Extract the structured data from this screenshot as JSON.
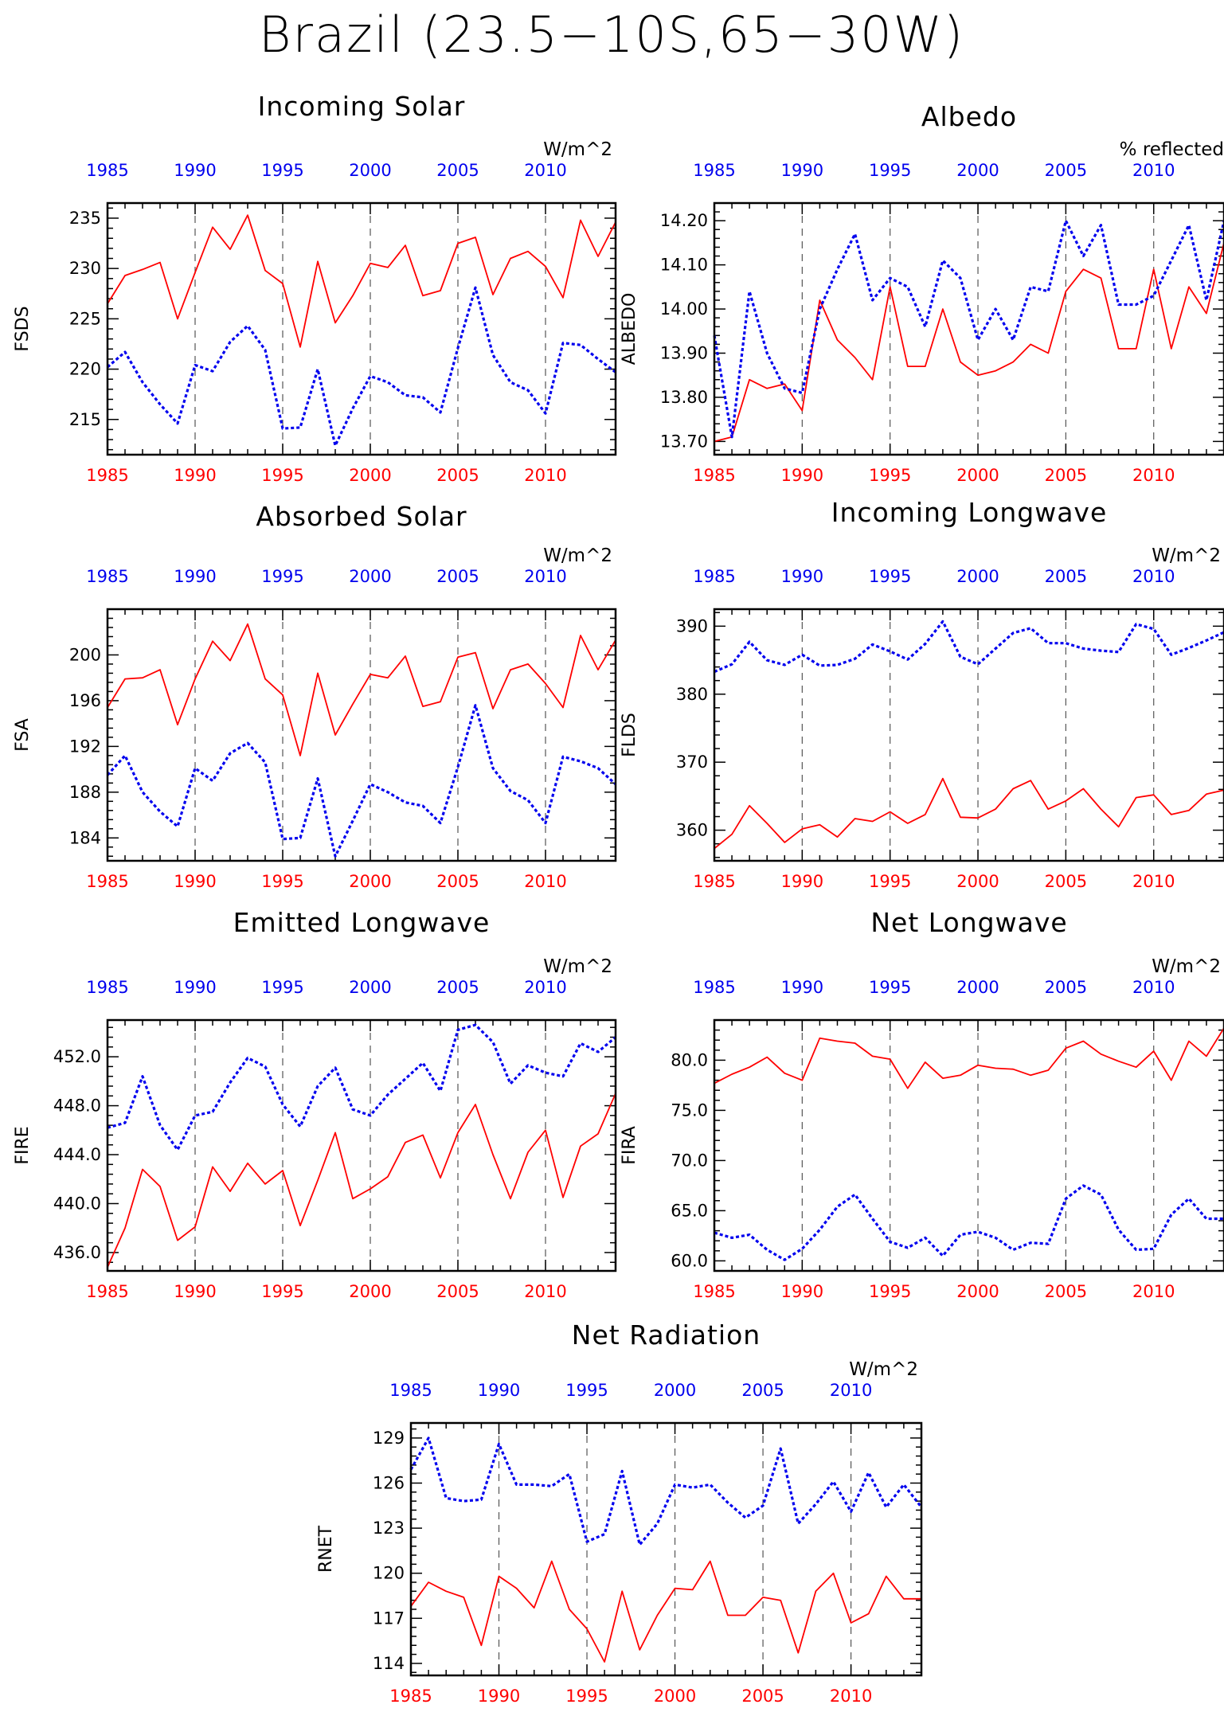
{
  "figure_title": "Brazil (23.5−10S,65−30W)",
  "colors": {
    "red": "#ff0000",
    "blue": "#0000ee",
    "axis": "#000000"
  },
  "chart_data": [
    {
      "type": "line",
      "title": "Incoming Solar",
      "ylabel": "FSDS",
      "units": "W/m^2",
      "x_start": 1985,
      "ylim": [
        211.5,
        236.5
      ],
      "yticks": [
        215,
        220,
        225,
        230,
        235
      ],
      "ytick_labels": [
        "215",
        "220",
        "225",
        "230",
        "235"
      ],
      "xticks": [
        1985,
        1990,
        1995,
        2000,
        2005,
        2010
      ],
      "xtick_labels": [
        "1985",
        "1990",
        "1995",
        "2000",
        "2005",
        "2010"
      ],
      "grid": "dashed vertical lines at 1990, 1995, 2000, 2005, 2010",
      "series": [
        {
          "values": [
            226.5,
            229.3,
            229.9,
            230.6,
            225.0,
            229.6,
            234.1,
            231.9,
            235.3,
            229.8,
            228.5,
            222.2,
            230.7,
            224.6,
            227.3,
            230.5,
            230.1,
            232.3,
            227.3,
            227.8,
            232.5,
            233.1,
            227.4,
            231.0,
            231.7,
            230.2,
            227.1,
            234.8,
            231.2,
            234.6
          ]
        },
        {
          "values": [
            220.2,
            221.7,
            218.7,
            216.5,
            214.6,
            220.4,
            219.8,
            222.7,
            224.3,
            221.9,
            214.1,
            214.2,
            220.0,
            212.4,
            216.1,
            219.3,
            218.7,
            217.4,
            217.2,
            215.7,
            222.1,
            228.1,
            221.4,
            218.7,
            217.9,
            215.6,
            222.6,
            222.4,
            221.0,
            219.7
          ]
        }
      ]
    },
    {
      "type": "line",
      "title": "Albedo",
      "ylabel": "ALBEDO",
      "units": "% reflected",
      "x_start": 1985,
      "ylim": [
        13.67,
        14.24
      ],
      "yticks": [
        13.7,
        13.8,
        13.9,
        14.0,
        14.1,
        14.2
      ],
      "ytick_labels": [
        "13.70",
        "13.80",
        "13.90",
        "14.00",
        "14.10",
        "14.20"
      ],
      "xticks": [
        1985,
        1990,
        1995,
        2000,
        2005,
        2010
      ],
      "xtick_labels": [
        "1985",
        "1990",
        "1995",
        "2000",
        "2005",
        "2010"
      ],
      "grid": "dashed vertical lines at 1990, 1995, 2000, 2005, 2010",
      "series": [
        {
          "values": [
            13.7,
            13.71,
            13.84,
            13.82,
            13.83,
            13.77,
            14.02,
            13.93,
            13.89,
            13.84,
            14.05,
            13.87,
            13.87,
            14.0,
            13.88,
            13.85,
            13.86,
            13.88,
            13.92,
            13.9,
            14.04,
            14.09,
            14.07,
            13.91,
            13.91,
            14.09,
            13.91,
            14.05,
            13.99,
            14.15
          ]
        },
        {
          "values": [
            13.94,
            13.71,
            14.04,
            13.9,
            13.82,
            13.81,
            14.0,
            14.09,
            14.17,
            14.02,
            14.07,
            14.05,
            13.96,
            14.11,
            14.07,
            13.93,
            14.0,
            13.93,
            14.05,
            14.04,
            14.2,
            14.12,
            14.19,
            14.01,
            14.01,
            14.03,
            14.11,
            14.19,
            14.02,
            14.2
          ]
        }
      ]
    },
    {
      "type": "line",
      "title": "Absorbed Solar",
      "ylabel": "FSA",
      "units": "W/m^2",
      "x_start": 1985,
      "ylim": [
        182.0,
        204.0
      ],
      "yticks": [
        184,
        188,
        192,
        196,
        200
      ],
      "ytick_labels": [
        "184",
        "188",
        "192",
        "196",
        "200"
      ],
      "xticks": [
        1985,
        1990,
        1995,
        2000,
        2005,
        2010
      ],
      "xtick_labels": [
        "1985",
        "1990",
        "1995",
        "2000",
        "2005",
        "2010"
      ],
      "grid": "dashed vertical lines at 1990, 1995, 2000, 2005, 2010",
      "series": [
        {
          "values": [
            195.4,
            197.9,
            198.0,
            198.7,
            193.9,
            197.9,
            201.2,
            199.5,
            202.7,
            197.9,
            196.5,
            191.2,
            198.4,
            193.0,
            195.7,
            198.3,
            198.0,
            199.9,
            195.5,
            195.9,
            199.8,
            200.2,
            195.3,
            198.7,
            199.2,
            197.5,
            195.4,
            201.7,
            198.7,
            201.3
          ]
        },
        {
          "values": [
            189.5,
            191.2,
            188.0,
            186.3,
            185.0,
            190.1,
            189.0,
            191.4,
            192.3,
            190.6,
            183.9,
            184.0,
            189.2,
            182.4,
            185.5,
            188.7,
            188.0,
            187.1,
            186.8,
            185.3,
            190.2,
            195.6,
            190.1,
            188.1,
            187.3,
            185.3,
            191.1,
            190.7,
            190.1,
            188.7
          ]
        }
      ]
    },
    {
      "type": "line",
      "title": "Incoming Longwave",
      "ylabel": "FLDS",
      "units": "W/m^2",
      "x_start": 1985,
      "ylim": [
        355.5,
        392.5
      ],
      "yticks": [
        360,
        370,
        380,
        390
      ],
      "ytick_labels": [
        "360",
        "370",
        "380",
        "390"
      ],
      "xticks": [
        1985,
        1990,
        1995,
        2000,
        2005,
        2010
      ],
      "xtick_labels": [
        "1985",
        "1990",
        "1995",
        "2000",
        "2005",
        "2010"
      ],
      "grid": "dashed vertical lines at 1990, 1995, 2000, 2005, 2010",
      "series": [
        {
          "values": [
            357.3,
            359.4,
            363.6,
            361.0,
            358.2,
            360.2,
            360.8,
            359.0,
            361.7,
            361.3,
            362.7,
            361.0,
            362.3,
            367.6,
            361.9,
            361.8,
            363.1,
            366.1,
            367.3,
            363.1,
            364.3,
            366.1,
            363.1,
            360.5,
            364.8,
            365.2,
            362.3,
            362.9,
            365.3,
            365.9
          ]
        },
        {
          "values": [
            383.3,
            384.4,
            387.7,
            385.0,
            384.3,
            385.8,
            384.2,
            384.3,
            385.2,
            387.3,
            386.3,
            385.1,
            387.4,
            390.7,
            385.5,
            384.4,
            386.7,
            389.0,
            389.7,
            387.5,
            387.5,
            386.7,
            386.4,
            386.2,
            390.3,
            389.6,
            385.8,
            386.8,
            387.9,
            389.1
          ]
        }
      ]
    },
    {
      "type": "line",
      "title": "Emitted Longwave",
      "ylabel": "FIRE",
      "units": "W/m^2",
      "x_start": 1985,
      "ylim": [
        434.5,
        455.0
      ],
      "yticks": [
        436,
        440,
        444,
        448,
        452
      ],
      "ytick_labels": [
        "436.0",
        "440.0",
        "444.0",
        "448.0",
        "452.0"
      ],
      "xticks": [
        1985,
        1990,
        1995,
        2000,
        2005,
        2010
      ],
      "xtick_labels": [
        "1985",
        "1990",
        "1995",
        "2000",
        "2005",
        "2010"
      ],
      "grid": "dashed vertical lines at 1990, 1995, 2000, 2005, 2010",
      "series": [
        {
          "values": [
            434.8,
            438.0,
            442.8,
            441.4,
            437.0,
            438.1,
            443.0,
            441.0,
            443.3,
            441.6,
            442.7,
            438.2,
            441.9,
            445.8,
            440.4,
            441.2,
            442.2,
            445.0,
            445.6,
            442.1,
            445.8,
            448.1,
            444.0,
            440.4,
            444.2,
            446.0,
            440.5,
            444.7,
            445.7,
            449.0
          ]
        },
        {
          "values": [
            446.2,
            446.6,
            450.4,
            446.4,
            444.4,
            447.2,
            447.5,
            449.9,
            451.9,
            451.2,
            448.1,
            446.3,
            449.6,
            451.1,
            447.7,
            447.2,
            448.9,
            450.2,
            451.5,
            449.2,
            454.2,
            454.6,
            453.2,
            449.8,
            451.3,
            450.7,
            450.4,
            453.1,
            452.4,
            453.6
          ]
        }
      ]
    },
    {
      "type": "line",
      "title": "Net Longwave",
      "ylabel": "FIRA",
      "units": "W/m^2",
      "x_start": 1985,
      "ylim": [
        59.0,
        84.0
      ],
      "yticks": [
        60,
        65,
        70,
        75,
        80
      ],
      "ytick_labels": [
        "60.0",
        "65.0",
        "70.0",
        "75.0",
        "80.0"
      ],
      "xticks": [
        1985,
        1990,
        1995,
        2000,
        2005,
        2010
      ],
      "xtick_labels": [
        "1985",
        "1990",
        "1995",
        "2000",
        "2005",
        "2010"
      ],
      "grid": "dashed vertical lines at 1990, 1995, 2000, 2005, 2010",
      "series": [
        {
          "values": [
            77.7,
            78.6,
            79.3,
            80.3,
            78.7,
            78.0,
            82.2,
            81.9,
            81.7,
            80.4,
            80.1,
            77.2,
            79.8,
            78.2,
            78.5,
            79.5,
            79.2,
            79.1,
            78.5,
            79.0,
            81.2,
            81.9,
            80.6,
            79.9,
            79.3,
            80.9,
            78.0,
            81.9,
            80.4,
            83.2
          ]
        },
        {
          "values": [
            62.8,
            62.3,
            62.6,
            61.1,
            60.1,
            61.2,
            63.1,
            65.4,
            66.6,
            64.2,
            61.9,
            61.3,
            62.3,
            60.5,
            62.6,
            62.9,
            62.3,
            61.1,
            61.8,
            61.7,
            66.2,
            67.5,
            66.6,
            63.1,
            61.1,
            61.2,
            64.6,
            66.2,
            64.2,
            64.2
          ]
        }
      ]
    },
    {
      "type": "line",
      "title": "Net Radiation",
      "ylabel": "RNET",
      "units": "W/m^2",
      "x_start": 1985,
      "ylim": [
        113.2,
        130.0
      ],
      "yticks": [
        114,
        117,
        120,
        123,
        126,
        129
      ],
      "ytick_labels": [
        "114",
        "117",
        "120",
        "123",
        "126",
        "129"
      ],
      "xticks": [
        1985,
        1990,
        1995,
        2000,
        2005,
        2010
      ],
      "xtick_labels": [
        "1985",
        "1990",
        "1995",
        "2000",
        "2005",
        "2010"
      ],
      "grid": "dashed vertical lines at 1990, 1995, 2000, 2005, 2010",
      "series": [
        {
          "values": [
            117.8,
            119.4,
            118.8,
            118.4,
            115.2,
            119.8,
            119.0,
            117.7,
            120.8,
            117.6,
            116.3,
            114.1,
            118.8,
            114.9,
            117.2,
            119.0,
            118.9,
            120.8,
            117.2,
            117.2,
            118.4,
            118.2,
            114.7,
            118.8,
            120.0,
            116.7,
            117.3,
            119.8,
            118.3,
            118.3
          ]
        },
        {
          "values": [
            126.9,
            129.0,
            125.0,
            124.8,
            124.9,
            128.6,
            125.9,
            125.9,
            125.8,
            126.6,
            122.1,
            122.6,
            126.8,
            121.9,
            123.3,
            125.9,
            125.7,
            125.9,
            124.7,
            123.7,
            124.5,
            128.3,
            123.3,
            124.6,
            126.1,
            124.1,
            126.7,
            124.4,
            125.9,
            124.4
          ]
        }
      ]
    }
  ]
}
